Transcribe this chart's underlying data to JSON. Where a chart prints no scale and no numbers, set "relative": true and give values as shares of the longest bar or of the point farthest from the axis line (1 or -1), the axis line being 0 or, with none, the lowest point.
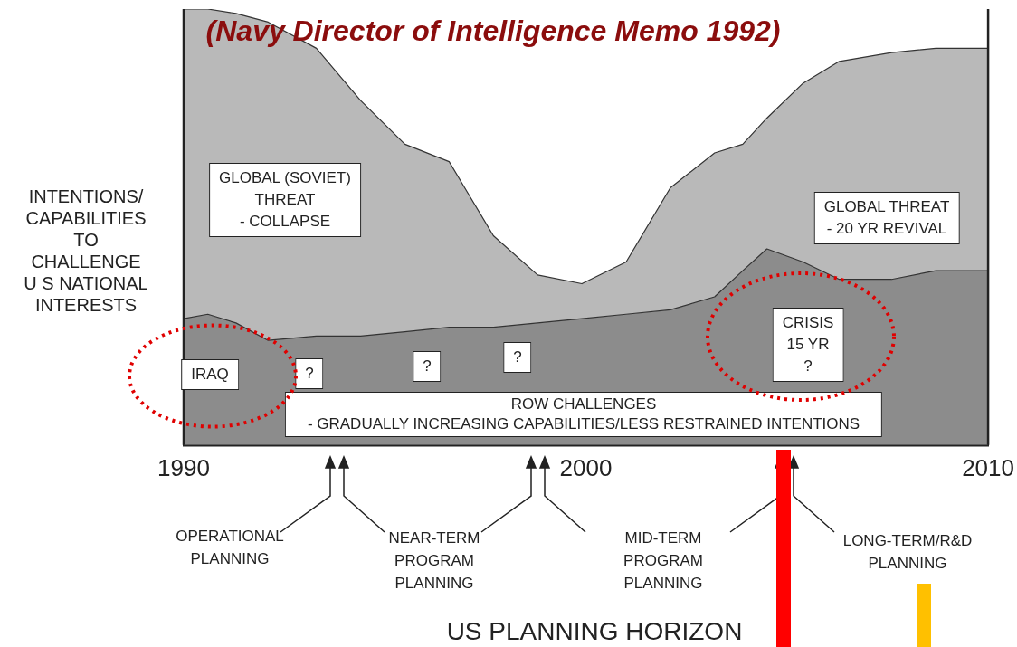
{
  "chart_data": {
    "type": "area",
    "title": "(Navy Director of Intelligence Memo 1992)",
    "ylabel": "INTENTIONS/\nCAPABILITIES\nTO\nCHALLENGE\nU S NATIONAL\nINTERESTS",
    "x": [
      1990,
      1990.6,
      1991.3,
      1992.1,
      1993.3,
      1994.4,
      1995.5,
      1996.6,
      1997.7,
      1998.8,
      1999.9,
      2001,
      2002.1,
      2003.2,
      2003.9,
      2004.5,
      2005.4,
      2006.3,
      2007.6,
      2008.7,
      2010
    ],
    "stacked": true,
    "relative": true,
    "series": [
      {
        "color": "#8c8c8c",
        "values": [
          0.29,
          0.3,
          0.28,
          0.24,
          0.25,
          0.25,
          0.26,
          0.27,
          0.27,
          0.28,
          0.29,
          0.3,
          0.31,
          0.34,
          0.4,
          0.45,
          0.42,
          0.38,
          0.38,
          0.4,
          0.4
        ]
      },
      {
        "color": "#b9b9b9",
        "values": [
          0.71,
          0.7,
          0.71,
          0.73,
          0.66,
          0.54,
          0.43,
          0.38,
          0.21,
          0.11,
          0.08,
          0.12,
          0.28,
          0.33,
          0.29,
          0.3,
          0.41,
          0.5,
          0.52,
          0.51,
          0.51
        ]
      }
    ],
    "xlim": [
      1990,
      2010
    ],
    "xticks": [
      1990,
      2000,
      2010
    ],
    "tick_labels": "x",
    "legend": false,
    "grid": false,
    "marker": "none",
    "annotations": [
      "GLOBAL (SOVIET)\nTHREAT\n- COLLAPSE",
      "GLOBAL THREAT\n- 20 YR REVIVAL",
      "IRAQ",
      "?",
      "?",
      "?",
      "CRISIS\n15 YR\n?",
      "ROW CHALLENGES\n- GRADUALLY INCREASING CAPABILITIES/LESS RESTRAINED INTENTIONS",
      "OPERATIONAL\nPLANNING",
      "NEAR-TERM\nPROGRAM\nPLANNING",
      "MID-TERM\nPROGRAM\nPLANNING",
      "LONG-TERM/R&D\nPLANNING",
      "US PLANNING HORIZON"
    ]
  }
}
